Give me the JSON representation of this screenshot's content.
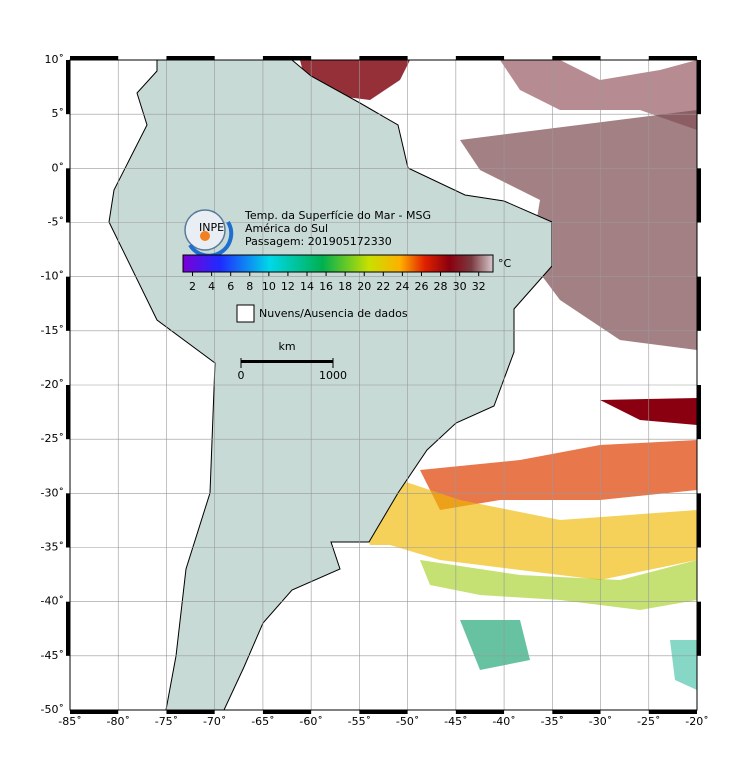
{
  "map": {
    "title": "Temp. da Superfície do Mar - MSG",
    "region": "América do Sul",
    "pass": "Passagem: 201905172330",
    "logo": "INPE",
    "xlim": [
      -85,
      -20
    ],
    "ylim": [
      -50,
      10
    ],
    "xticks": [
      {
        "value": -85,
        "label": "-85˚"
      },
      {
        "value": -80,
        "label": "-80˚"
      },
      {
        "value": -75,
        "label": "-75˚"
      },
      {
        "value": -70,
        "label": "-70˚"
      },
      {
        "value": -65,
        "label": "-65˚"
      },
      {
        "value": -60,
        "label": "-60˚"
      },
      {
        "value": -55,
        "label": "-55˚"
      },
      {
        "value": -50,
        "label": "-50˚"
      },
      {
        "value": -45,
        "label": "-45˚"
      },
      {
        "value": -40,
        "label": "-40˚"
      },
      {
        "value": -35,
        "label": "-35˚"
      },
      {
        "value": -30,
        "label": "-30˚"
      },
      {
        "value": -25,
        "label": "-25˚"
      },
      {
        "value": -20,
        "label": "-20˚"
      }
    ],
    "yticks": [
      {
        "value": 10,
        "label": "10˚"
      },
      {
        "value": 5,
        "label": "5˚"
      },
      {
        "value": 0,
        "label": "0˚"
      },
      {
        "value": -5,
        "label": "-5˚"
      },
      {
        "value": -10,
        "label": "-10˚"
      },
      {
        "value": -15,
        "label": "-15˚"
      },
      {
        "value": -20,
        "label": "-20˚"
      },
      {
        "value": -25,
        "label": "-25˚"
      },
      {
        "value": -30,
        "label": "-30˚"
      },
      {
        "value": -35,
        "label": "-35˚"
      },
      {
        "value": -40,
        "label": "-40˚"
      },
      {
        "value": -45,
        "label": "-45˚"
      },
      {
        "value": -50,
        "label": "-50˚"
      }
    ],
    "colorbar": {
      "unit": "°C",
      "lim": [
        1,
        33.5
      ],
      "ticks": [
        2,
        4,
        6,
        8,
        10,
        12,
        14,
        16,
        18,
        20,
        22,
        24,
        26,
        28,
        30,
        32
      ]
    },
    "legend": "Nuvens/Ausencia de dados",
    "scale": {
      "unit": "km",
      "ticks": [
        0,
        1000
      ]
    }
  }
}
